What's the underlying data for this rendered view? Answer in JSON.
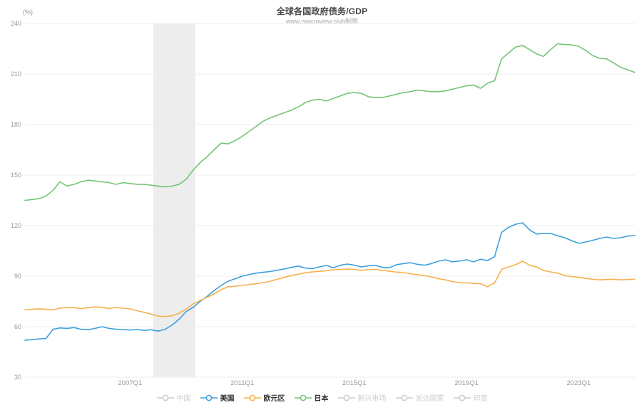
{
  "header": {
    "title": "全球各国政府债务/GDP",
    "subtitle": "www.macroview.club制图"
  },
  "axis": {
    "unit": "(%)",
    "y_ticks": [
      240,
      210,
      180,
      150,
      120,
      90,
      60,
      30
    ],
    "x_tick_labels": [
      "2007Q1",
      "2011Q1",
      "2015Q1",
      "2019Q1",
      "2023Q1"
    ],
    "x_tick_indices": [
      15,
      31,
      47,
      63,
      79
    ]
  },
  "colors": {
    "us_blue": "#3ba0dc",
    "eurozone_orange": "#f8b04e",
    "japan_green": "#74c476",
    "inactive_gray": "#cccccc",
    "grid": "#eeeeee",
    "band": "#ededed",
    "tick_text": "#999999"
  },
  "legend": {
    "items": [
      {
        "key": "china",
        "label": "中国",
        "color": "#cccccc",
        "active": false
      },
      {
        "key": "us",
        "label": "美国",
        "color": "#3ba0dc",
        "active": true
      },
      {
        "key": "eurozone",
        "label": "欧元区",
        "color": "#f8b04e",
        "active": true
      },
      {
        "key": "japan",
        "label": "日本",
        "color": "#74c476",
        "active": true
      },
      {
        "key": "emerging-markets",
        "label": "新兴市场",
        "color": "#cccccc",
        "active": false
      },
      {
        "key": "developed-countries",
        "label": "发达国家",
        "color": "#cccccc",
        "active": false
      },
      {
        "key": "india",
        "label": "印度",
        "color": "#cccccc",
        "active": false
      }
    ]
  },
  "chart_data": {
    "type": "line",
    "title": "全球各国政府债务/GDP",
    "subtitle": "www.macroview.club制图",
    "ylabel": "(%)",
    "ylim": [
      30,
      240
    ],
    "y_ticks": [
      240,
      210,
      180,
      150,
      120,
      90,
      60,
      30
    ],
    "grid": "horizontal-only",
    "x_count": 88,
    "x_start": "2003Q2",
    "x_end": "2025Q1",
    "x_frequency": "quarterly",
    "x_tick_labels": [
      "2007Q1",
      "2011Q1",
      "2015Q1",
      "2019Q1",
      "2023Q1"
    ],
    "x_tick_indices": [
      15,
      31,
      47,
      63,
      79
    ],
    "recession_band": {
      "from_index": 18.3,
      "to_index": 24.3,
      "approx_period": "2007Q4-2009Q2"
    },
    "legend_position": "bottom-center",
    "inactive_series": [
      "中国",
      "新兴市场",
      "发达国家",
      "印度"
    ],
    "series": [
      {
        "name": "美国",
        "key": "us",
        "color": "#3ba0dc",
        "values": [
          52,
          52.3,
          52.7,
          53,
          58.5,
          59.3,
          59,
          59.5,
          58.5,
          58.2,
          59,
          60,
          59,
          58.5,
          58.3,
          58,
          58.3,
          57.8,
          58.2,
          57.4,
          58.5,
          61,
          64.5,
          69,
          71.5,
          75,
          78,
          81.5,
          84.5,
          87,
          88.5,
          90,
          91,
          91.8,
          92.3,
          92.8,
          93.5,
          94.3,
          95.2,
          96,
          94.8,
          94.5,
          95.5,
          96.4,
          95,
          96.5,
          97.2,
          96.5,
          95.5,
          96.2,
          96.4,
          95.2,
          95,
          96.8,
          97.5,
          98,
          97,
          96.5,
          97.5,
          98.9,
          99.7,
          98.5,
          99,
          99.7,
          98.5,
          100,
          99.3,
          101.5,
          116,
          119,
          120.8,
          121.7,
          117.5,
          115,
          115.4,
          115.4,
          114,
          112.8,
          111.1,
          109.5,
          110.3,
          111.3,
          112.4,
          113.2,
          112.4,
          112.8,
          113.8,
          114.1
        ]
      },
      {
        "name": "欧元区",
        "key": "eurozone",
        "color": "#f8b04e",
        "values": [
          70,
          70.3,
          70.6,
          70.3,
          70,
          71,
          71.5,
          71.3,
          70.8,
          71.3,
          71.8,
          71.5,
          70.8,
          71.5,
          71,
          70.5,
          69.5,
          68.5,
          67.5,
          66.3,
          66,
          66.5,
          68,
          70.5,
          73.5,
          75.6,
          77.5,
          79.5,
          82,
          83.7,
          84,
          84.5,
          85,
          85.5,
          86.2,
          87,
          88.2,
          89.3,
          90.4,
          91.2,
          92,
          92.5,
          92.9,
          93.2,
          93.8,
          94,
          94.2,
          94,
          93.5,
          93.8,
          94,
          93.5,
          92.9,
          92.4,
          92.1,
          91.5,
          90.8,
          90.4,
          89.5,
          88.5,
          87.8,
          86.8,
          86.2,
          86,
          85.7,
          85.5,
          83.7,
          86,
          94,
          95.5,
          96.8,
          98.9,
          96.5,
          95.5,
          93.4,
          92.5,
          91.8,
          90.4,
          89.8,
          89.3,
          88.7,
          88.2,
          87.8,
          88,
          88.2,
          87.8,
          88,
          88.2
        ]
      },
      {
        "name": "日本",
        "key": "japan",
        "color": "#74c476",
        "values": [
          135,
          135.5,
          136,
          137.5,
          141,
          146,
          143.5,
          144.5,
          146,
          147,
          146.5,
          146,
          145.5,
          144.5,
          145.5,
          145,
          144.5,
          144.5,
          144,
          143.5,
          143,
          143.5,
          144.5,
          147.5,
          153,
          157.5,
          161,
          165,
          169,
          168.5,
          170.5,
          173,
          176,
          179,
          182,
          184,
          185.5,
          187,
          188.5,
          190.5,
          193,
          194.5,
          195,
          194,
          195.5,
          197,
          198.5,
          199,
          198.5,
          196.5,
          196,
          196,
          197,
          198,
          199,
          199.5,
          200.5,
          200,
          199.5,
          199.5,
          200,
          201,
          202,
          203,
          203.5,
          201.5,
          204.5,
          206,
          219,
          222.5,
          226,
          227,
          224.5,
          222,
          220.5,
          224.5,
          228,
          227.5,
          227.3,
          226.5,
          224,
          221,
          219.3,
          219,
          216.5,
          214,
          212.5,
          211
        ]
      }
    ]
  }
}
